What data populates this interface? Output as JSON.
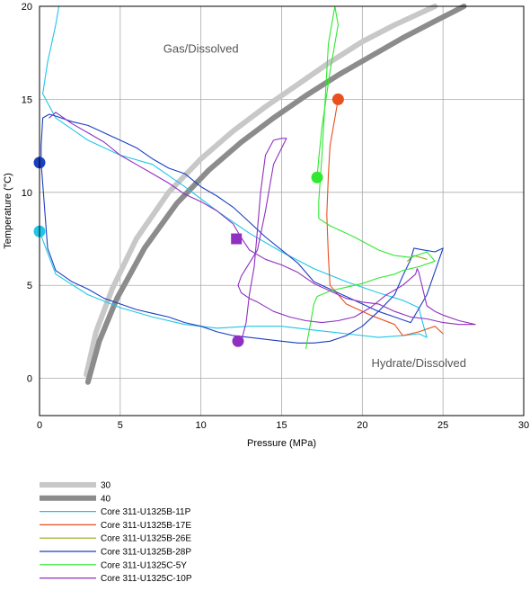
{
  "chart_data": {
    "type": "line",
    "xlabel": "Pressure (MPa)",
    "ylabel": "Temperature (°C)",
    "xlim": [
      0,
      30
    ],
    "ylim": [
      -2,
      20
    ],
    "xticks": [
      0,
      5,
      10,
      15,
      20,
      25,
      30
    ],
    "yticks": [
      0,
      5,
      10,
      15,
      20
    ],
    "grid": true,
    "legend_placement": "bottom-left, below plot",
    "annotations": [
      {
        "text": "Gas/Dissolved",
        "x": 10,
        "y": 17.5
      },
      {
        "text": "Hydrate/Dissolved",
        "x": 23.5,
        "y": 0.6
      }
    ],
    "series": [
      {
        "name": "30",
        "color": "#c8c8c8",
        "role": "phase-boundary",
        "x": [
          2.9,
          3.5,
          4.5,
          6,
          8,
          10,
          12,
          14,
          16,
          18,
          20,
          22,
          24.5
        ],
        "y": [
          0.2,
          2.5,
          4.8,
          7.5,
          10.0,
          11.8,
          13.3,
          14.6,
          15.8,
          17.0,
          18.1,
          19.0,
          20.0
        ]
      },
      {
        "name": "40",
        "color": "#8c8c8c",
        "role": "phase-boundary",
        "x": [
          3.0,
          3.7,
          4.8,
          6.5,
          8.5,
          10.5,
          12.5,
          14.5,
          16.5,
          18.5,
          20.5,
          22.5,
          24.5,
          26.3
        ],
        "y": [
          -0.2,
          2.0,
          4.3,
          7.0,
          9.4,
          11.2,
          12.7,
          14.0,
          15.2,
          16.3,
          17.3,
          18.3,
          19.2,
          20.0
        ]
      },
      {
        "name": "Core 311-U1325B-11P",
        "color": "#1fc6e8",
        "x": [
          1.2,
          1.0,
          0.5,
          0.2,
          1.0,
          3,
          5,
          7,
          9,
          11,
          13,
          15,
          17,
          19,
          21,
          22.5,
          23.5,
          23.8,
          24.0,
          23.5,
          22.5,
          21,
          19,
          17,
          15,
          13,
          11,
          9,
          7,
          5,
          3,
          1,
          0
        ],
        "y": [
          20.0,
          19.0,
          17.0,
          15.3,
          14.0,
          12.8,
          12.0,
          11.5,
          10.3,
          9.0,
          7.8,
          6.8,
          5.9,
          5.2,
          4.6,
          4.2,
          3.8,
          2.8,
          2.2,
          2.4,
          2.3,
          2.2,
          2.4,
          2.6,
          2.8,
          2.8,
          2.7,
          2.9,
          3.3,
          3.8,
          4.5,
          5.6,
          7.9
        ]
      },
      {
        "name": "Core 311-U1325B-17E",
        "color": "#e8501f",
        "x": [
          18.5,
          18.3,
          18.0,
          17.9,
          17.8,
          17.9,
          18.0,
          19,
          20.5,
          22,
          22.5,
          23.5,
          24.5,
          25
        ],
        "y": [
          15.0,
          14.0,
          12.5,
          11.0,
          8.8,
          6.5,
          5.0,
          4.0,
          3.4,
          2.9,
          2.3,
          2.5,
          2.8,
          2.4
        ]
      },
      {
        "name": "Core 311-U1325B-26E",
        "color": "#9aa81a",
        "x": [
          22.8,
          23.2,
          23.6,
          24.0
        ],
        "y": [
          6.3,
          6.6,
          6.5,
          6.4
        ]
      },
      {
        "name": "Core 311-U1325B-28P",
        "color": "#1a3fc0",
        "x": [
          0.1,
          0.1,
          0.2,
          0.6,
          1.0,
          2,
          3,
          4,
          5,
          6,
          7,
          8,
          9,
          10,
          11,
          12,
          13,
          14,
          15,
          16,
          17,
          18,
          19,
          20,
          21,
          22,
          23,
          24,
          25,
          24.5,
          23.8,
          23.2,
          23.0,
          22.5,
          22,
          21,
          20,
          19,
          18,
          17,
          16,
          15,
          14,
          13,
          12,
          11,
          10,
          9,
          8,
          7,
          6,
          5,
          4,
          3,
          2,
          1,
          0.5,
          0.1
        ],
        "y": [
          11.6,
          12.5,
          14.0,
          14.2,
          14.1,
          13.8,
          13.6,
          13.2,
          12.8,
          12.4,
          11.8,
          11.3,
          11.0,
          10.3,
          9.8,
          9.2,
          8.4,
          7.6,
          6.9,
          6.2,
          5.2,
          4.8,
          4.4,
          4.0,
          3.6,
          3.3,
          3.0,
          4.5,
          7.0,
          6.8,
          6.9,
          7.0,
          6.4,
          5.5,
          4.5,
          3.6,
          2.8,
          2.3,
          2.0,
          1.9,
          1.9,
          2.0,
          2.1,
          2.2,
          2.3,
          2.5,
          2.8,
          3.0,
          3.3,
          3.5,
          3.7,
          4.0,
          4.3,
          4.8,
          5.2,
          5.8,
          7.0,
          11.6
        ]
      },
      {
        "name": "Core 311-U1325C-5Y",
        "color": "#30e830",
        "x": [
          17.2,
          17.3,
          17.5,
          18.0,
          18.5,
          18.3,
          17.9,
          17.5,
          17.3,
          17.3,
          18.0,
          19.5,
          21,
          22,
          23,
          24,
          24.5,
          23.5,
          22.5,
          22,
          21,
          20,
          19,
          18,
          17.2,
          17.0,
          16.8,
          16.5
        ],
        "y": [
          10.8,
          11.8,
          13.5,
          16.5,
          19.0,
          20.0,
          18.0,
          12.0,
          9.5,
          8.6,
          8.2,
          7.6,
          6.9,
          6.6,
          6.5,
          6.8,
          6.3,
          6.0,
          5.8,
          5.6,
          5.4,
          5.1,
          4.9,
          4.7,
          4.4,
          4.0,
          3.0,
          1.6
        ]
      },
      {
        "name": "Core 311-U1325C-10P",
        "color": "#9030c0",
        "x": [
          0.6,
          1.0,
          2,
          3,
          4,
          5,
          6,
          7,
          8,
          9,
          10,
          11,
          12,
          12.4,
          13,
          14,
          15,
          16,
          17,
          18,
          19,
          20,
          21,
          22,
          23,
          24,
          25,
          26,
          27,
          26,
          25,
          24.5,
          24,
          23.5,
          23.4,
          23.3,
          22.5,
          21.5,
          20.5,
          19.5,
          18.5,
          17.5,
          16.5,
          15.5,
          14.5,
          13.5,
          13,
          12.5,
          12.3,
          12.5,
          13.0,
          13.5,
          14.0,
          14.5,
          15.3,
          15.0,
          14.5,
          14.0,
          13.7,
          13.5,
          13.3,
          13.0,
          12.8,
          12.5
        ],
        "y": [
          14.0,
          14.3,
          13.7,
          13.2,
          12.7,
          12.0,
          11.5,
          11.0,
          10.5,
          9.9,
          9.5,
          9.0,
          8.3,
          7.7,
          6.9,
          6.4,
          6.1,
          5.7,
          5.1,
          4.7,
          4.3,
          4.1,
          4.0,
          3.6,
          3.3,
          3.2,
          3.0,
          2.9,
          2.9,
          3.1,
          3.4,
          3.6,
          3.9,
          5.7,
          5.9,
          5.6,
          5.0,
          4.5,
          3.8,
          3.3,
          3.1,
          3.0,
          3.1,
          3.3,
          3.6,
          4.1,
          4.3,
          4.6,
          5.0,
          5.5,
          6.2,
          6.9,
          9.0,
          11.5,
          12.9,
          12.9,
          12.8,
          12.0,
          10.0,
          8.0,
          6.0,
          4.5,
          3.0,
          2.0
        ]
      }
    ],
    "markers": [
      {
        "series": "Core 311-U1325B-17E",
        "shape": "circle",
        "x": 18.5,
        "y": 15.0,
        "color": "#e8501f"
      },
      {
        "series": "Core 311-U1325C-5Y",
        "shape": "circle",
        "x": 17.2,
        "y": 10.8,
        "color": "#30e830"
      },
      {
        "series": "Core 311-U1325B-28P",
        "shape": "circle",
        "x": 0,
        "y": 11.6,
        "color": "#1a3fc0"
      },
      {
        "series": "Core 311-U1325B-11P",
        "shape": "circle",
        "x": 0,
        "y": 7.9,
        "color": "#1fc6e8"
      },
      {
        "series": "Core 311-U1325C-10P",
        "shape": "square",
        "x": 12.2,
        "y": 7.5,
        "color": "#9030c0"
      },
      {
        "series": "Core 311-U1325C-10P",
        "shape": "circle",
        "x": 12.3,
        "y": 2.0,
        "color": "#9030c0"
      }
    ]
  }
}
